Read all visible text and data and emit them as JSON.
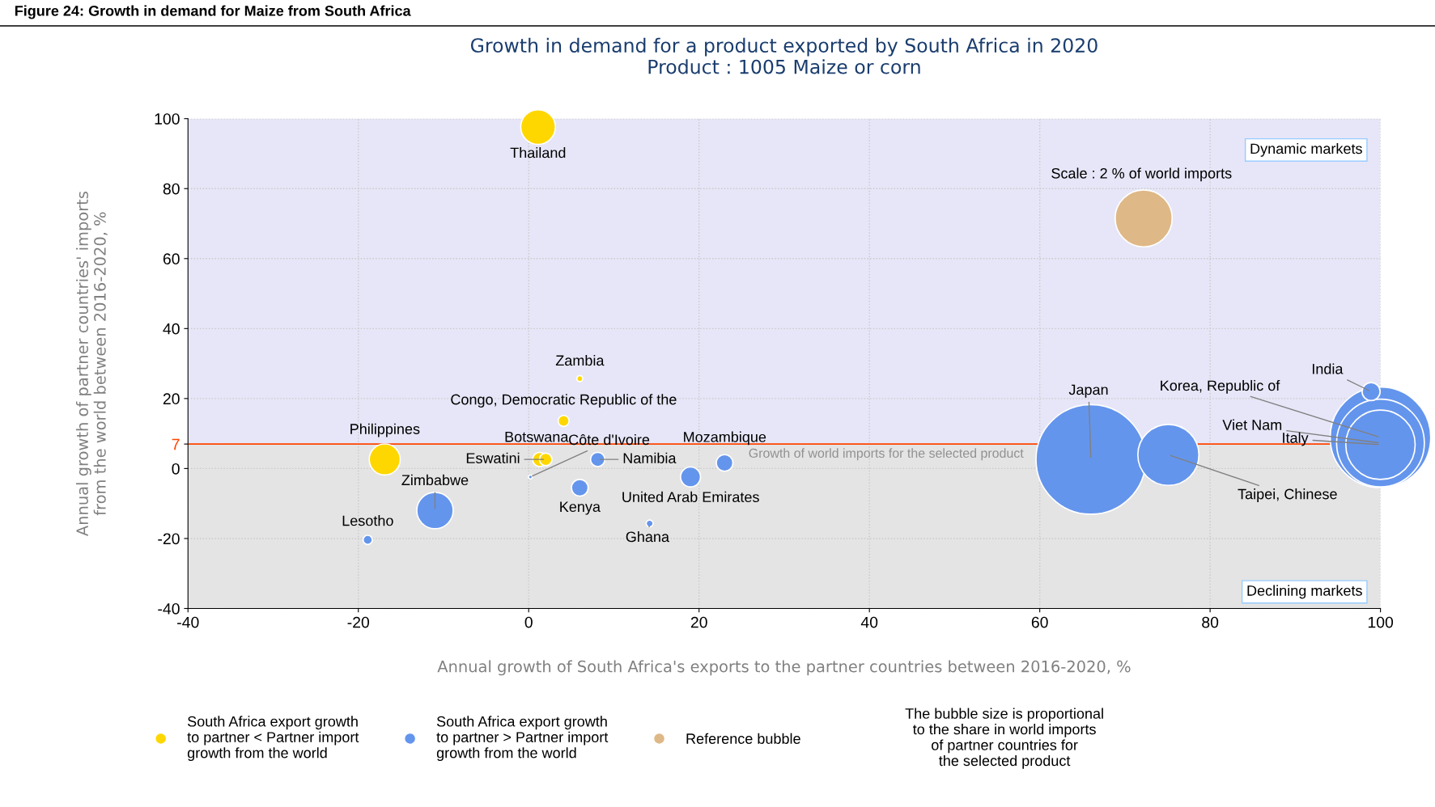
{
  "chart_data": {
    "type": "bubble",
    "title": "Growth in demand for a product exported by South Africa in 2020\nProduct : 1005 Maize or corn",
    "xlabel": "Annual growth of South Africa's exports to the partner countries between 2016-2020, %",
    "ylabel": "Annual growth of partner countries' imports\nfrom the world between 2016-2020, %",
    "xlim": [
      -40,
      100
    ],
    "xticks": [
      -40,
      -20,
      0,
      20,
      40,
      60,
      80,
      100
    ],
    "ylim": [
      -40,
      100
    ],
    "yticks": [
      -40,
      -20,
      0,
      7,
      20,
      40,
      60,
      80,
      100
    ],
    "grid": true,
    "legend": "bottom",
    "series": [
      {
        "name": "South Africa export growth\nto partner < Partner import\ngrowth from the world",
        "color": "#ffd700",
        "x": [
          1.1,
          6.0,
          4.1,
          -16.9,
          1.3,
          2.0
        ],
        "values": [
          97.6,
          25.7,
          13.6,
          2.6,
          2.6,
          2.6
        ],
        "sizes": [
          0.1,
          0.003,
          0.01,
          0.08,
          0.017,
          0.013
        ]
      },
      {
        "name": "South Africa export growth\nto partner > Partner import\ngrowth from the world",
        "color": "#6495ed",
        "x": [
          0.2,
          23.0,
          8.1,
          19.0,
          6.0,
          -11.0,
          -18.9,
          14.2,
          66.0,
          75.1,
          100,
          100,
          100,
          98.9
        ],
        "values": [
          -2.4,
          1.6,
          2.6,
          -2.4,
          -5.5,
          -12.0,
          -20.4,
          -15.7,
          2.6,
          3.9,
          8.9,
          7.3,
          6.8,
          22.0
        ],
        "sizes": [
          0.0013,
          0.023,
          0.017,
          0.033,
          0.023,
          0.11,
          0.007,
          0.004,
          1,
          0.31,
          0.84,
          0.64,
          0.4,
          0.027
        ]
      },
      {
        "name": "Reference bubble",
        "color": "#deb887",
        "x": [
          72.2
        ],
        "values": [
          71.5
        ],
        "sizes": [
          0.27
        ]
      }
    ],
    "ref_lines": [
      {
        "axis": "y",
        "value": 7,
        "label": "Growth of world imports for the selected product",
        "color": "#ff4500"
      }
    ],
    "bands": [
      {
        "axis": "y",
        "from": 7,
        "to": 100,
        "label": "Dynamic markets",
        "color": "#e6e6f8"
      },
      {
        "axis": "y",
        "from": -40,
        "to": 7,
        "label": "Declining markets",
        "color": "#e4e4e4"
      }
    ],
    "annotations": [
      {
        "text": "Thailand",
        "x": 1.1,
        "y": 97.6
      },
      {
        "text": "Zambia",
        "x": 6.0,
        "y": 25.7
      },
      {
        "text": "Congo, Democratic Republic of the",
        "x": 4.1,
        "y": 13.6
      },
      {
        "text": "Philippines",
        "x": -16.9,
        "y": 2.6
      },
      {
        "text": "Botswana",
        "x": 1.3,
        "y": 2.6
      },
      {
        "text": "Eswatini",
        "x": 2.0,
        "y": 2.6
      },
      {
        "text": "Côte d'Ivoire",
        "x": 0.2,
        "y": -2.4
      },
      {
        "text": "Mozambique",
        "x": 23.0,
        "y": 1.6
      },
      {
        "text": "Namibia",
        "x": 8.1,
        "y": 2.6
      },
      {
        "text": "United Arab Emirates",
        "x": 19.0,
        "y": -2.4
      },
      {
        "text": "Kenya",
        "x": 6.0,
        "y": -5.5
      },
      {
        "text": "Zimbabwe",
        "x": -11.0,
        "y": -12.0
      },
      {
        "text": "Lesotho",
        "x": -18.9,
        "y": -20.4
      },
      {
        "text": "Ghana",
        "x": 14.2,
        "y": -15.7
      },
      {
        "text": "Japan",
        "x": 66.0,
        "y": 2.6
      },
      {
        "text": "Taipei, Chinese",
        "x": 75.1,
        "y": 3.9
      },
      {
        "text": "India",
        "x": 98.9,
        "y": 22.0
      },
      {
        "text": "Korea, Republic of",
        "x": 100,
        "y": 8.9
      },
      {
        "text": "Viet Nam",
        "x": 100,
        "y": 7.3
      },
      {
        "text": "Italy",
        "x": 100,
        "y": 6.8
      },
      {
        "text": "Scale : 2 % of world imports",
        "x": 72.2,
        "y": 71.5
      },
      "The bubble size is proportional\nto the share in world imports\nof partner countries for\nthe selected product",
      "Figure 24: Growth in demand for Maize from South Africa"
    ]
  }
}
